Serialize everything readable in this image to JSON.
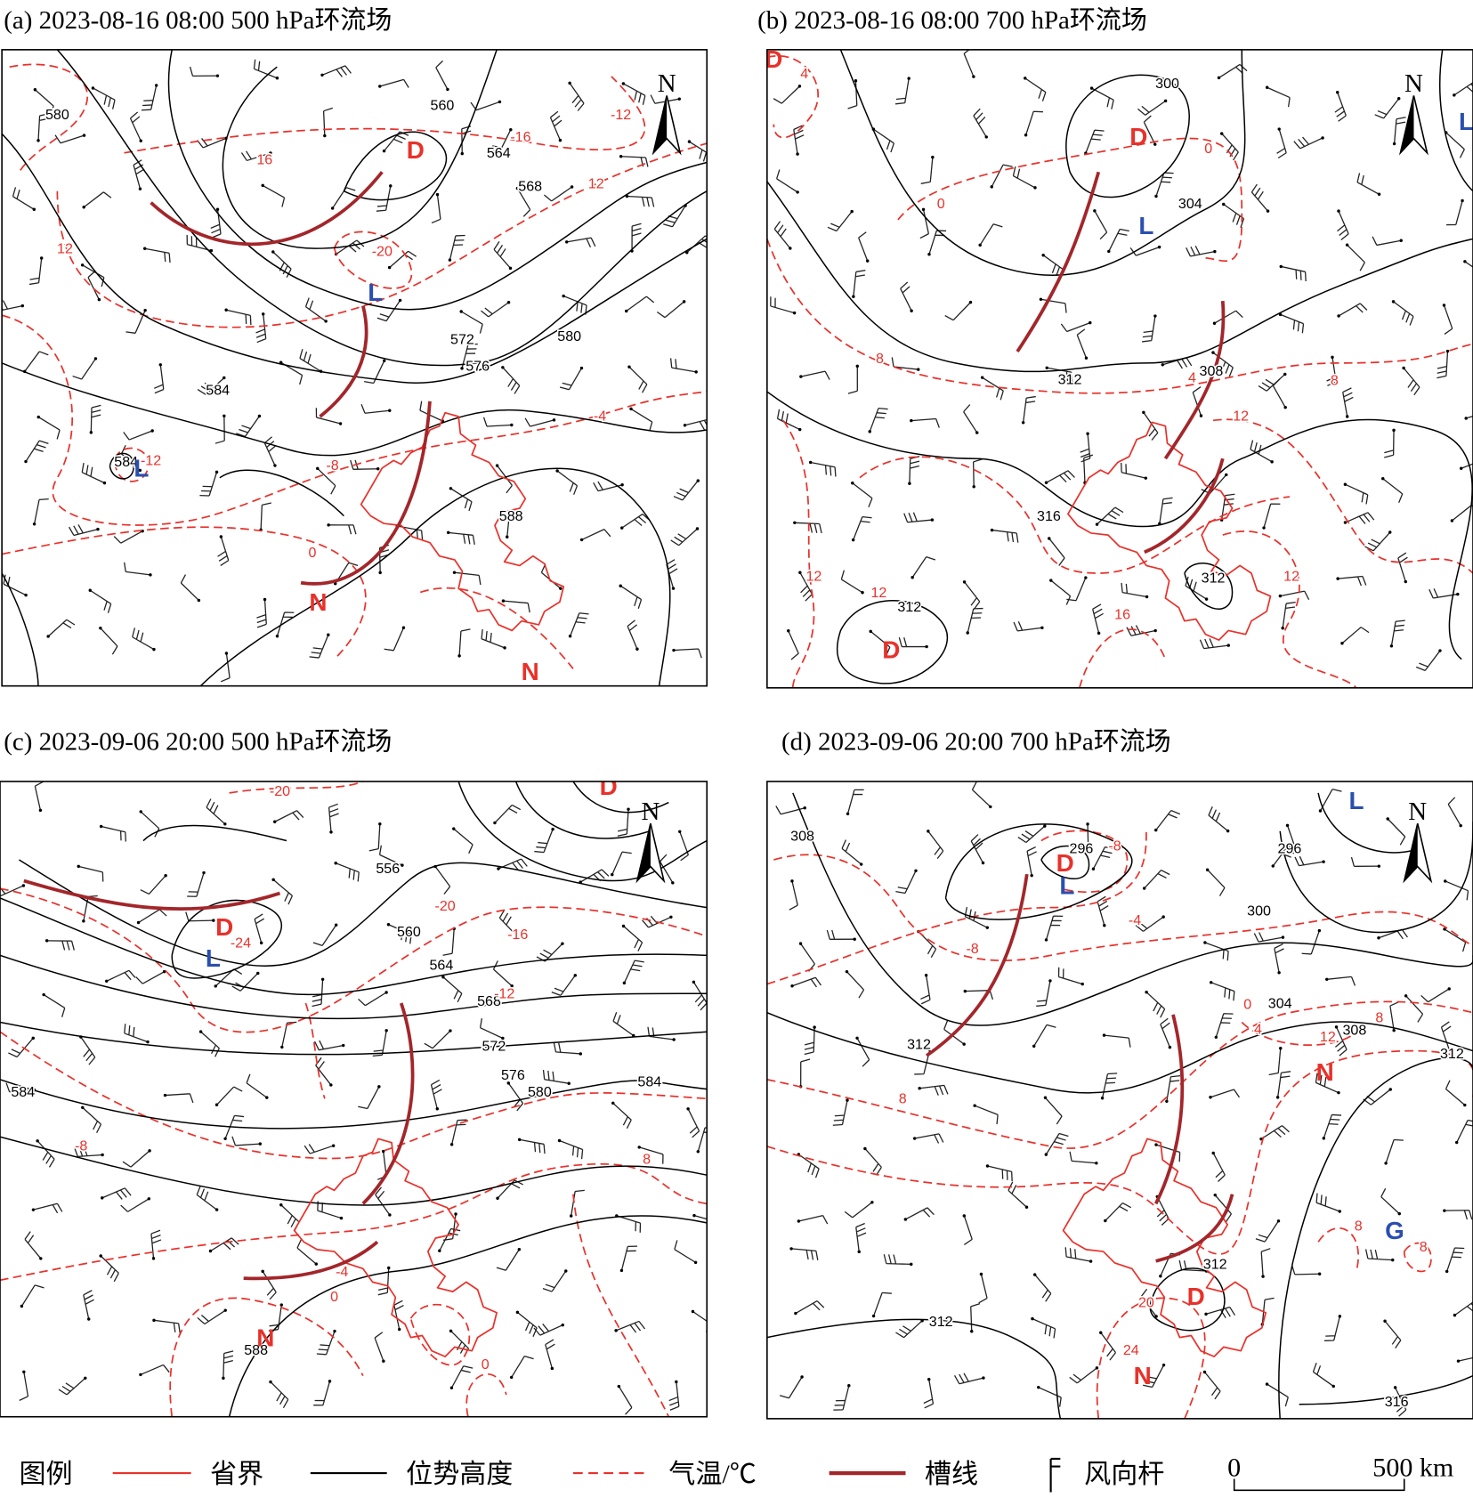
{
  "panels": [
    {
      "title": "(a) 2023-08-16 08:00 500 hPa环流场",
      "height_labels": [
        "580",
        "560",
        "564",
        "568",
        "572",
        "576",
        "580",
        "584",
        "584",
        "588"
      ],
      "temp_labels": [
        "16",
        "-16",
        "-12",
        "12",
        "-20",
        "12",
        "-4",
        "-8",
        "0",
        "-12"
      ],
      "systems": [
        "D",
        "L",
        "L",
        "N",
        "N"
      ]
    },
    {
      "title": "(b) 2023-08-16 08:00 700 hPa环流场",
      "height_labels": [
        "300",
        "304",
        "308",
        "312",
        "316",
        "312",
        "312"
      ],
      "temp_labels": [
        "0",
        "0",
        "4",
        "8",
        "8",
        "12",
        "12",
        "12",
        "16",
        "4",
        "12"
      ],
      "systems": [
        "D",
        "L",
        "D",
        "D",
        "L"
      ]
    },
    {
      "title": "(c) 2023-09-06 20:00 500 hPa环流场",
      "height_labels": [
        "556",
        "560",
        "564",
        "568",
        "572",
        "576",
        "580",
        "584",
        "584",
        "588"
      ],
      "temp_labels": [
        "-20",
        "-20",
        "-16",
        "-24",
        "-12",
        "-8",
        "8",
        "-4",
        "0",
        "0"
      ],
      "systems": [
        "D",
        "D",
        "L",
        "N"
      ]
    },
    {
      "title": "(d) 2023-09-06 20:00 700 hPa环流场",
      "height_labels": [
        "308",
        "296",
        "296",
        "300",
        "304",
        "308",
        "312",
        "312",
        "312",
        "312",
        "316"
      ],
      "temp_labels": [
        "-8",
        "-8",
        "-4",
        "0",
        "4",
        "8",
        "12",
        "8",
        "8",
        "8",
        "20",
        "24"
      ],
      "systems": [
        "L",
        "D",
        "L",
        "N",
        "G",
        "D",
        "N"
      ]
    }
  ],
  "north": "N",
  "system_colors": {
    "D": "#e8312a",
    "N": "#e8312a",
    "L": "#2a4fb0",
    "G": "#2a4fb0"
  },
  "legend": {
    "title": "图例",
    "items": [
      "省界",
      "位势高度",
      "气温/℃",
      "槽线",
      "风向杆"
    ],
    "scale": [
      "0",
      "500 km"
    ]
  }
}
